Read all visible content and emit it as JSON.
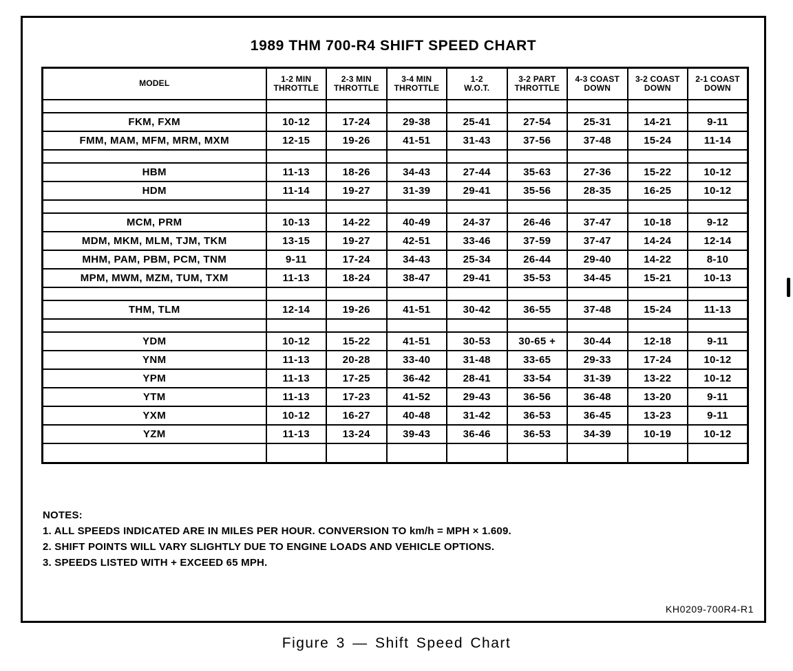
{
  "page": {
    "title": "1989 THM 700-R4 SHIFT SPEED CHART",
    "caption": "Figure 3 — Shift Speed Chart",
    "doc_code": "KH0209-700R4-R1",
    "ink_color": "#000000",
    "paper_color": "#ffffff"
  },
  "table": {
    "columns": [
      {
        "line1": "MODEL",
        "line2": ""
      },
      {
        "line1": "1-2 MIN",
        "line2": "THROTTLE"
      },
      {
        "line1": "2-3 MIN",
        "line2": "THROTTLE"
      },
      {
        "line1": "3-4 MIN",
        "line2": "THROTTLE"
      },
      {
        "line1": "1-2",
        "line2": "W.O.T."
      },
      {
        "line1": "3-2 PART",
        "line2": "THROTTLE"
      },
      {
        "line1": "4-3 COAST",
        "line2": "DOWN"
      },
      {
        "line1": "3-2 COAST",
        "line2": "DOWN"
      },
      {
        "line1": "2-1 COAST",
        "line2": "DOWN"
      }
    ],
    "rows": [
      {
        "type": "spacer"
      },
      {
        "type": "data",
        "model": "FKM, FXM",
        "values": [
          "10-12",
          "17-24",
          "29-38",
          "25-41",
          "27-54",
          "25-31",
          "14-21",
          "9-11"
        ]
      },
      {
        "type": "data",
        "model": "FMM, MAM, MFM, MRM, MXM",
        "values": [
          "12-15",
          "19-26",
          "41-51",
          "31-43",
          "37-56",
          "37-48",
          "15-24",
          "11-14"
        ]
      },
      {
        "type": "spacer"
      },
      {
        "type": "data",
        "model": "HBM",
        "values": [
          "11-13",
          "18-26",
          "34-43",
          "27-44",
          "35-63",
          "27-36",
          "15-22",
          "10-12"
        ]
      },
      {
        "type": "data",
        "model": "HDM",
        "values": [
          "11-14",
          "19-27",
          "31-39",
          "29-41",
          "35-56",
          "28-35",
          "16-25",
          "10-12"
        ]
      },
      {
        "type": "spacer"
      },
      {
        "type": "data",
        "model": "MCM, PRM",
        "values": [
          "10-13",
          "14-22",
          "40-49",
          "24-37",
          "26-46",
          "37-47",
          "10-18",
          "9-12"
        ]
      },
      {
        "type": "data",
        "model": "MDM, MKM, MLM, TJM, TKM",
        "values": [
          "13-15",
          "19-27",
          "42-51",
          "33-46",
          "37-59",
          "37-47",
          "14-24",
          "12-14"
        ]
      },
      {
        "type": "data",
        "model": "MHM, PAM, PBM, PCM, TNM",
        "values": [
          "9-11",
          "17-24",
          "34-43",
          "25-34",
          "26-44",
          "29-40",
          "14-22",
          "8-10"
        ]
      },
      {
        "type": "data",
        "model": "MPM, MWM, MZM, TUM, TXM",
        "values": [
          "11-13",
          "18-24",
          "38-47",
          "29-41",
          "35-53",
          "34-45",
          "15-21",
          "10-13"
        ]
      },
      {
        "type": "spacer"
      },
      {
        "type": "data",
        "model": "THM, TLM",
        "values": [
          "12-14",
          "19-26",
          "41-51",
          "30-42",
          "36-55",
          "37-48",
          "15-24",
          "11-13"
        ]
      },
      {
        "type": "spacer"
      },
      {
        "type": "data",
        "model": "YDM",
        "values": [
          "10-12",
          "15-22",
          "41-51",
          "30-53",
          "30-65 +",
          "30-44",
          "12-18",
          "9-11"
        ]
      },
      {
        "type": "data",
        "model": "YNM",
        "values": [
          "11-13",
          "20-28",
          "33-40",
          "31-48",
          "33-65",
          "29-33",
          "17-24",
          "10-12"
        ]
      },
      {
        "type": "data",
        "model": "YPM",
        "values": [
          "11-13",
          "17-25",
          "36-42",
          "28-41",
          "33-54",
          "31-39",
          "13-22",
          "10-12"
        ]
      },
      {
        "type": "data",
        "model": "YTM",
        "values": [
          "11-13",
          "17-23",
          "41-52",
          "29-43",
          "36-56",
          "36-48",
          "13-20",
          "9-11"
        ]
      },
      {
        "type": "data",
        "model": "YXM",
        "values": [
          "10-12",
          "16-27",
          "40-48",
          "31-42",
          "36-53",
          "36-45",
          "13-23",
          "9-11"
        ]
      },
      {
        "type": "data",
        "model": "YZM",
        "values": [
          "11-13",
          "13-24",
          "39-43",
          "36-46",
          "36-53",
          "34-39",
          "10-19",
          "10-12"
        ]
      },
      {
        "type": "spacer",
        "tall": true
      }
    ]
  },
  "notes": {
    "heading": "NOTES:",
    "items": [
      "1. ALL SPEEDS INDICATED ARE IN MILES PER HOUR. CONVERSION TO km/h = MPH × 1.609.",
      "2. SHIFT POINTS WILL VARY SLIGHTLY DUE TO ENGINE LOADS AND VEHICLE OPTIONS.",
      "3. SPEEDS LISTED WITH + EXCEED 65 MPH."
    ]
  }
}
